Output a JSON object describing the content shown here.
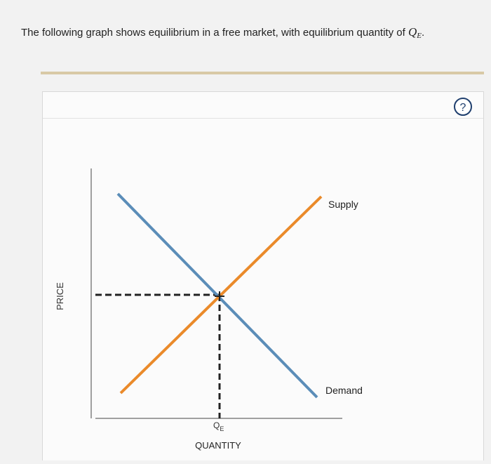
{
  "question": {
    "text": "The following graph shows equilibrium in a free market, with equilibrium quantity of",
    "symbol": "Q",
    "subscript": "E",
    "end": "."
  },
  "panel": {
    "help": "?"
  },
  "graph": {
    "y_label": "PRICE",
    "x_label": "QUANTITY",
    "supply_label": "Supply",
    "demand_label": "Demand",
    "q_label": "Q",
    "q_subscript": "E"
  }
}
